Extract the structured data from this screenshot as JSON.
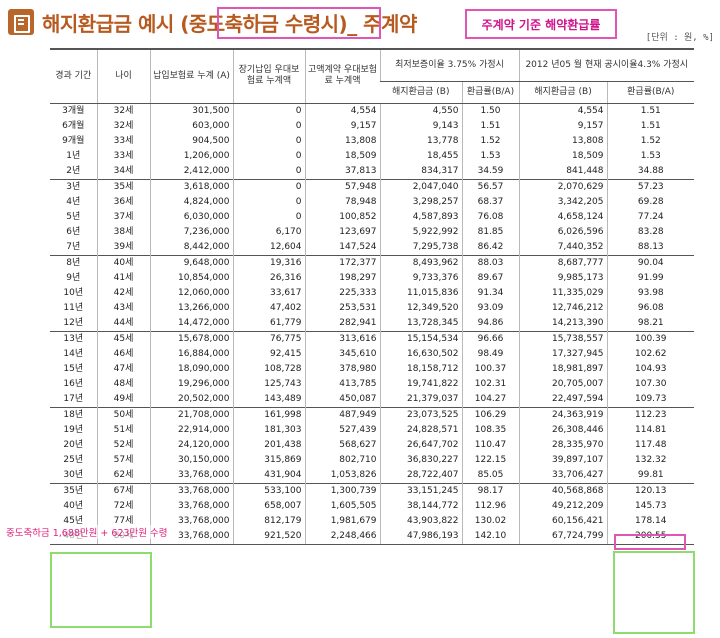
{
  "title": {
    "main": "해지환급금 예시 ",
    "highlight": "(중도축하금 수령시)",
    "suffix": "_ 주계약",
    "note": "주계약 기준 해약환급률",
    "unit": "[단위 : 원, %]"
  },
  "headers": {
    "period": "경과 기간",
    "age": "나이",
    "paid": "납입보험료 누계 (A)",
    "rider": "장기납입 우대보험료 누계액",
    "high": "고액계약 우대보험료 누계액",
    "guarantee_group": "최저보증이율 3.75% 가정시",
    "current_group": "2012 년05 월 현재 공시이율4.3% 가정시",
    "refund": "해지환급금 (B)",
    "rate": "환급률(B/A)"
  },
  "rows": [
    {
      "period": "3개월",
      "age": "32세",
      "paid": "301,500",
      "rider": "0",
      "high": "4,554",
      "g_refund": "4,550",
      "g_rate": "1.50",
      "c_refund": "4,554",
      "c_rate": "1.51"
    },
    {
      "period": "6개월",
      "age": "32세",
      "paid": "603,000",
      "rider": "0",
      "high": "9,157",
      "g_refund": "9,143",
      "g_rate": "1.51",
      "c_refund": "9,157",
      "c_rate": "1.51"
    },
    {
      "period": "9개월",
      "age": "33세",
      "paid": "904,500",
      "rider": "0",
      "high": "13,808",
      "g_refund": "13,778",
      "g_rate": "1.52",
      "c_refund": "13,808",
      "c_rate": "1.52"
    },
    {
      "period": "1년",
      "age": "33세",
      "paid": "1,206,000",
      "rider": "0",
      "high": "18,509",
      "g_refund": "18,455",
      "g_rate": "1.53",
      "c_refund": "18,509",
      "c_rate": "1.53"
    },
    {
      "period": "2년",
      "age": "34세",
      "paid": "2,412,000",
      "rider": "0",
      "high": "37,813",
      "g_refund": "834,317",
      "g_rate": "34.59",
      "c_refund": "841,448",
      "c_rate": "34.88"
    },
    {
      "period": "3년",
      "age": "35세",
      "paid": "3,618,000",
      "rider": "0",
      "high": "57,948",
      "g_refund": "2,047,040",
      "g_rate": "56.57",
      "c_refund": "2,070,629",
      "c_rate": "57.23"
    },
    {
      "period": "4년",
      "age": "36세",
      "paid": "4,824,000",
      "rider": "0",
      "high": "78,948",
      "g_refund": "3,298,257",
      "g_rate": "68.37",
      "c_refund": "3,342,205",
      "c_rate": "69.28"
    },
    {
      "period": "5년",
      "age": "37세",
      "paid": "6,030,000",
      "rider": "0",
      "high": "100,852",
      "g_refund": "4,587,893",
      "g_rate": "76.08",
      "c_refund": "4,658,124",
      "c_rate": "77.24"
    },
    {
      "period": "6년",
      "age": "38세",
      "paid": "7,236,000",
      "rider": "6,170",
      "high": "123,697",
      "g_refund": "5,922,992",
      "g_rate": "81.85",
      "c_refund": "6,026,596",
      "c_rate": "83.28"
    },
    {
      "period": "7년",
      "age": "39세",
      "paid": "8,442,000",
      "rider": "12,604",
      "high": "147,524",
      "g_refund": "7,295,738",
      "g_rate": "86.42",
      "c_refund": "7,440,352",
      "c_rate": "88.13"
    },
    {
      "period": "8년",
      "age": "40세",
      "paid": "9,648,000",
      "rider": "19,316",
      "high": "172,377",
      "g_refund": "8,493,962",
      "g_rate": "88.03",
      "c_refund": "8,687,777",
      "c_rate": "90.04"
    },
    {
      "period": "9년",
      "age": "41세",
      "paid": "10,854,000",
      "rider": "26,316",
      "high": "198,297",
      "g_refund": "9,733,376",
      "g_rate": "89.67",
      "c_refund": "9,985,173",
      "c_rate": "91.99"
    },
    {
      "period": "10년",
      "age": "42세",
      "paid": "12,060,000",
      "rider": "33,617",
      "high": "225,333",
      "g_refund": "11,015,836",
      "g_rate": "91.34",
      "c_refund": "11,335,029",
      "c_rate": "93.98"
    },
    {
      "period": "11년",
      "age": "43세",
      "paid": "13,266,000",
      "rider": "47,402",
      "high": "253,531",
      "g_refund": "12,349,520",
      "g_rate": "93.09",
      "c_refund": "12,746,212",
      "c_rate": "96.08"
    },
    {
      "period": "12년",
      "age": "44세",
      "paid": "14,472,000",
      "rider": "61,779",
      "high": "282,941",
      "g_refund": "13,728,345",
      "g_rate": "94.86",
      "c_refund": "14,213,390",
      "c_rate": "98.21"
    },
    {
      "period": "13년",
      "age": "45세",
      "paid": "15,678,000",
      "rider": "76,775",
      "high": "313,616",
      "g_refund": "15,154,534",
      "g_rate": "96.66",
      "c_refund": "15,738,557",
      "c_rate": "100.39"
    },
    {
      "period": "14년",
      "age": "46세",
      "paid": "16,884,000",
      "rider": "92,415",
      "high": "345,610",
      "g_refund": "16,630,502",
      "g_rate": "98.49",
      "c_refund": "17,327,945",
      "c_rate": "102.62"
    },
    {
      "period": "15년",
      "age": "47세",
      "paid": "18,090,000",
      "rider": "108,728",
      "high": "378,980",
      "g_refund": "18,158,712",
      "g_rate": "100.37",
      "c_refund": "18,981,897",
      "c_rate": "104.93"
    },
    {
      "period": "16년",
      "age": "48세",
      "paid": "19,296,000",
      "rider": "125,743",
      "high": "413,785",
      "g_refund": "19,741,822",
      "g_rate": "102.31",
      "c_refund": "20,705,007",
      "c_rate": "107.30"
    },
    {
      "period": "17년",
      "age": "49세",
      "paid": "20,502,000",
      "rider": "143,489",
      "high": "450,087",
      "g_refund": "21,379,037",
      "g_rate": "104.27",
      "c_refund": "22,497,594",
      "c_rate": "109.73"
    },
    {
      "period": "18년",
      "age": "50세",
      "paid": "21,708,000",
      "rider": "161,998",
      "high": "487,949",
      "g_refund": "23,073,525",
      "g_rate": "106.29",
      "c_refund": "24,363,919",
      "c_rate": "112.23"
    },
    {
      "period": "19년",
      "age": "51세",
      "paid": "22,914,000",
      "rider": "181,303",
      "high": "527,439",
      "g_refund": "24,828,571",
      "g_rate": "108.35",
      "c_refund": "26,308,446",
      "c_rate": "114.81"
    },
    {
      "period": "20년",
      "age": "52세",
      "paid": "24,120,000",
      "rider": "201,438",
      "high": "568,627",
      "g_refund": "26,647,702",
      "g_rate": "110.47",
      "c_refund": "28,335,970",
      "c_rate": "117.48"
    },
    {
      "period": "25년",
      "age": "57세",
      "paid": "30,150,000",
      "rider": "315,869",
      "high": "802,710",
      "g_refund": "36,830,227",
      "g_rate": "122.15",
      "c_refund": "39,897,107",
      "c_rate": "132.32"
    },
    {
      "period": "30년",
      "age": "62세",
      "paid": "33,768,000",
      "rider": "431,904",
      "high": "1,053,826",
      "g_refund": "28,722,407",
      "g_rate": "85.05",
      "c_refund": "33,706,427",
      "c_rate": "99.81"
    },
    {
      "period": "35년",
      "age": "67세",
      "paid": "33,768,000",
      "rider": "533,100",
      "high": "1,300,739",
      "g_refund": "33,151,245",
      "g_rate": "98.17",
      "c_refund": "40,568,868",
      "c_rate": "120.13"
    },
    {
      "period": "40년",
      "age": "72세",
      "paid": "33,768,000",
      "rider": "658,007",
      "high": "1,605,505",
      "g_refund": "38,144,772",
      "g_rate": "112.96",
      "c_refund": "49,212,209",
      "c_rate": "145.73"
    },
    {
      "period": "45년",
      "age": "77세",
      "paid": "33,768,000",
      "rider": "812,179",
      "high": "1,981,679",
      "g_refund": "43,903,822",
      "g_rate": "130.02",
      "c_refund": "60,156,421",
      "c_rate": "178.14"
    },
    {
      "period": "48년",
      "age": "80세",
      "paid": "33,768,000",
      "rider": "921,520",
      "high": "2,248,466",
      "g_refund": "47,986,193",
      "g_rate": "142.10",
      "c_refund": "67,724,799",
      "c_rate": "200.55"
    }
  ],
  "group_starts": [
    5,
    10,
    15,
    20,
    25
  ],
  "annotation": "중도축하금 1,688만원 + 623만원 수령",
  "colors": {
    "title": "#b85a1f",
    "highlight_border": "#e056b6",
    "note_text": "#d0148c",
    "green_border": "#8cdc6e"
  }
}
